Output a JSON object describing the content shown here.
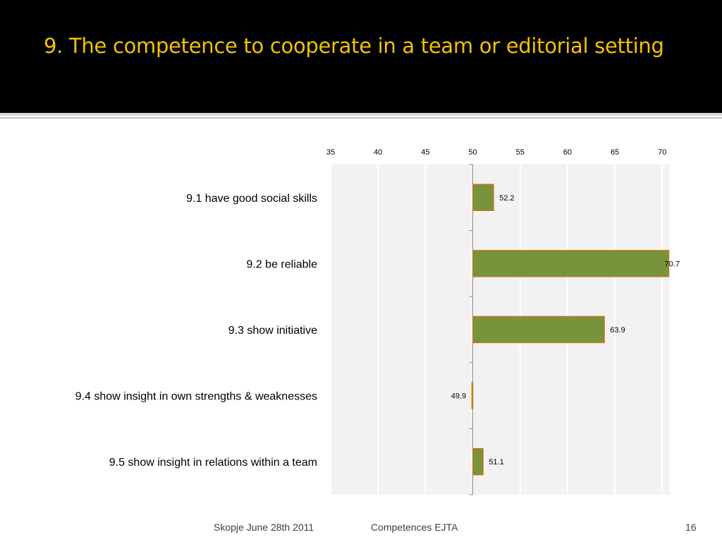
{
  "slide": {
    "title": "9. The competence to cooperate in a team or editorial setting"
  },
  "footer": {
    "location_date": "Skopje June 28th 2011",
    "center": "Competences EJTA",
    "page_number": "16"
  },
  "colors": {
    "header_bg": "#000000",
    "title": "#f2c200",
    "bar_fill": "#77933c",
    "bar_border": "#e36c09",
    "plot_bg": "#f2f2f2"
  },
  "chart_data": {
    "type": "bar",
    "orientation": "horizontal",
    "base_value": 50,
    "categories": [
      "9.1 have good social skills",
      "9.2 be reliable",
      "9.3 show initiative",
      "9.4 show insight in own strengths & weaknesses",
      "9.5 show insight in relations within a team"
    ],
    "values": [
      52.2,
      70.7,
      63.9,
      49.9,
      51.1
    ],
    "data_labels": [
      "52.2",
      "70.7",
      "63.9",
      "49.9",
      "51.1"
    ],
    "x_ticks": [
      35,
      40,
      45,
      50,
      55,
      60,
      65,
      70
    ],
    "x_tick_labels": [
      "35",
      "40",
      "45",
      "50",
      "55",
      "60",
      "65",
      "70"
    ],
    "xlim": [
      35,
      70.8
    ],
    "x_axis_position": "top",
    "grid": true,
    "legend": "none"
  }
}
